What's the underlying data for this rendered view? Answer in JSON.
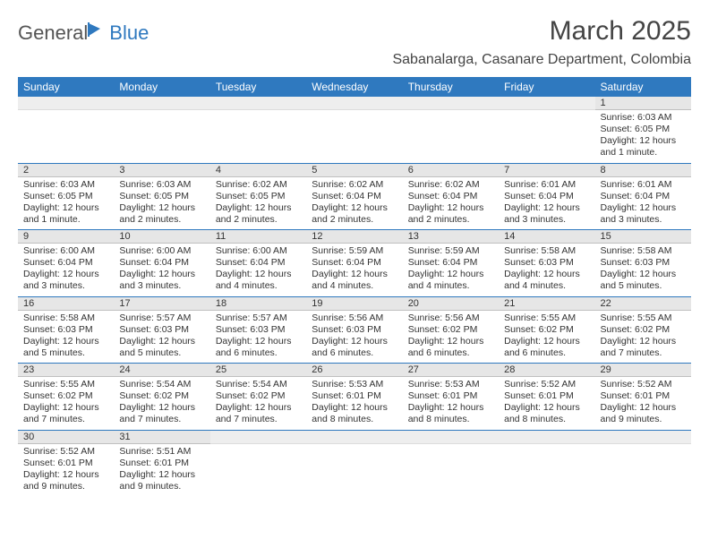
{
  "brand": {
    "part1": "General",
    "part2": "Blue"
  },
  "title": "March 2025",
  "location": "Sabanalarga, Casanare Department, Colombia",
  "colors": {
    "header_bg": "#2f79bf",
    "header_text": "#ffffff",
    "day_header_bg": "#e6e6e6",
    "row_divider": "#2f79bf",
    "text": "#333333",
    "brand_gray": "#555555",
    "brand_blue": "#2f79bf"
  },
  "weekdays": [
    "Sunday",
    "Monday",
    "Tuesday",
    "Wednesday",
    "Thursday",
    "Friday",
    "Saturday"
  ],
  "weeks": [
    [
      {
        "n": "",
        "sr": "",
        "ss": "",
        "dl": ""
      },
      {
        "n": "",
        "sr": "",
        "ss": "",
        "dl": ""
      },
      {
        "n": "",
        "sr": "",
        "ss": "",
        "dl": ""
      },
      {
        "n": "",
        "sr": "",
        "ss": "",
        "dl": ""
      },
      {
        "n": "",
        "sr": "",
        "ss": "",
        "dl": ""
      },
      {
        "n": "",
        "sr": "",
        "ss": "",
        "dl": ""
      },
      {
        "n": "1",
        "sr": "Sunrise: 6:03 AM",
        "ss": "Sunset: 6:05 PM",
        "dl": "Daylight: 12 hours and 1 minute."
      }
    ],
    [
      {
        "n": "2",
        "sr": "Sunrise: 6:03 AM",
        "ss": "Sunset: 6:05 PM",
        "dl": "Daylight: 12 hours and 1 minute."
      },
      {
        "n": "3",
        "sr": "Sunrise: 6:03 AM",
        "ss": "Sunset: 6:05 PM",
        "dl": "Daylight: 12 hours and 2 minutes."
      },
      {
        "n": "4",
        "sr": "Sunrise: 6:02 AM",
        "ss": "Sunset: 6:05 PM",
        "dl": "Daylight: 12 hours and 2 minutes."
      },
      {
        "n": "5",
        "sr": "Sunrise: 6:02 AM",
        "ss": "Sunset: 6:04 PM",
        "dl": "Daylight: 12 hours and 2 minutes."
      },
      {
        "n": "6",
        "sr": "Sunrise: 6:02 AM",
        "ss": "Sunset: 6:04 PM",
        "dl": "Daylight: 12 hours and 2 minutes."
      },
      {
        "n": "7",
        "sr": "Sunrise: 6:01 AM",
        "ss": "Sunset: 6:04 PM",
        "dl": "Daylight: 12 hours and 3 minutes."
      },
      {
        "n": "8",
        "sr": "Sunrise: 6:01 AM",
        "ss": "Sunset: 6:04 PM",
        "dl": "Daylight: 12 hours and 3 minutes."
      }
    ],
    [
      {
        "n": "9",
        "sr": "Sunrise: 6:00 AM",
        "ss": "Sunset: 6:04 PM",
        "dl": "Daylight: 12 hours and 3 minutes."
      },
      {
        "n": "10",
        "sr": "Sunrise: 6:00 AM",
        "ss": "Sunset: 6:04 PM",
        "dl": "Daylight: 12 hours and 3 minutes."
      },
      {
        "n": "11",
        "sr": "Sunrise: 6:00 AM",
        "ss": "Sunset: 6:04 PM",
        "dl": "Daylight: 12 hours and 4 minutes."
      },
      {
        "n": "12",
        "sr": "Sunrise: 5:59 AM",
        "ss": "Sunset: 6:04 PM",
        "dl": "Daylight: 12 hours and 4 minutes."
      },
      {
        "n": "13",
        "sr": "Sunrise: 5:59 AM",
        "ss": "Sunset: 6:04 PM",
        "dl": "Daylight: 12 hours and 4 minutes."
      },
      {
        "n": "14",
        "sr": "Sunrise: 5:58 AM",
        "ss": "Sunset: 6:03 PM",
        "dl": "Daylight: 12 hours and 4 minutes."
      },
      {
        "n": "15",
        "sr": "Sunrise: 5:58 AM",
        "ss": "Sunset: 6:03 PM",
        "dl": "Daylight: 12 hours and 5 minutes."
      }
    ],
    [
      {
        "n": "16",
        "sr": "Sunrise: 5:58 AM",
        "ss": "Sunset: 6:03 PM",
        "dl": "Daylight: 12 hours and 5 minutes."
      },
      {
        "n": "17",
        "sr": "Sunrise: 5:57 AM",
        "ss": "Sunset: 6:03 PM",
        "dl": "Daylight: 12 hours and 5 minutes."
      },
      {
        "n": "18",
        "sr": "Sunrise: 5:57 AM",
        "ss": "Sunset: 6:03 PM",
        "dl": "Daylight: 12 hours and 6 minutes."
      },
      {
        "n": "19",
        "sr": "Sunrise: 5:56 AM",
        "ss": "Sunset: 6:03 PM",
        "dl": "Daylight: 12 hours and 6 minutes."
      },
      {
        "n": "20",
        "sr": "Sunrise: 5:56 AM",
        "ss": "Sunset: 6:02 PM",
        "dl": "Daylight: 12 hours and 6 minutes."
      },
      {
        "n": "21",
        "sr": "Sunrise: 5:55 AM",
        "ss": "Sunset: 6:02 PM",
        "dl": "Daylight: 12 hours and 6 minutes."
      },
      {
        "n": "22",
        "sr": "Sunrise: 5:55 AM",
        "ss": "Sunset: 6:02 PM",
        "dl": "Daylight: 12 hours and 7 minutes."
      }
    ],
    [
      {
        "n": "23",
        "sr": "Sunrise: 5:55 AM",
        "ss": "Sunset: 6:02 PM",
        "dl": "Daylight: 12 hours and 7 minutes."
      },
      {
        "n": "24",
        "sr": "Sunrise: 5:54 AM",
        "ss": "Sunset: 6:02 PM",
        "dl": "Daylight: 12 hours and 7 minutes."
      },
      {
        "n": "25",
        "sr": "Sunrise: 5:54 AM",
        "ss": "Sunset: 6:02 PM",
        "dl": "Daylight: 12 hours and 7 minutes."
      },
      {
        "n": "26",
        "sr": "Sunrise: 5:53 AM",
        "ss": "Sunset: 6:01 PM",
        "dl": "Daylight: 12 hours and 8 minutes."
      },
      {
        "n": "27",
        "sr": "Sunrise: 5:53 AM",
        "ss": "Sunset: 6:01 PM",
        "dl": "Daylight: 12 hours and 8 minutes."
      },
      {
        "n": "28",
        "sr": "Sunrise: 5:52 AM",
        "ss": "Sunset: 6:01 PM",
        "dl": "Daylight: 12 hours and 8 minutes."
      },
      {
        "n": "29",
        "sr": "Sunrise: 5:52 AM",
        "ss": "Sunset: 6:01 PM",
        "dl": "Daylight: 12 hours and 9 minutes."
      }
    ],
    [
      {
        "n": "30",
        "sr": "Sunrise: 5:52 AM",
        "ss": "Sunset: 6:01 PM",
        "dl": "Daylight: 12 hours and 9 minutes."
      },
      {
        "n": "31",
        "sr": "Sunrise: 5:51 AM",
        "ss": "Sunset: 6:01 PM",
        "dl": "Daylight: 12 hours and 9 minutes."
      },
      {
        "n": "",
        "sr": "",
        "ss": "",
        "dl": ""
      },
      {
        "n": "",
        "sr": "",
        "ss": "",
        "dl": ""
      },
      {
        "n": "",
        "sr": "",
        "ss": "",
        "dl": ""
      },
      {
        "n": "",
        "sr": "",
        "ss": "",
        "dl": ""
      },
      {
        "n": "",
        "sr": "",
        "ss": "",
        "dl": ""
      }
    ]
  ]
}
